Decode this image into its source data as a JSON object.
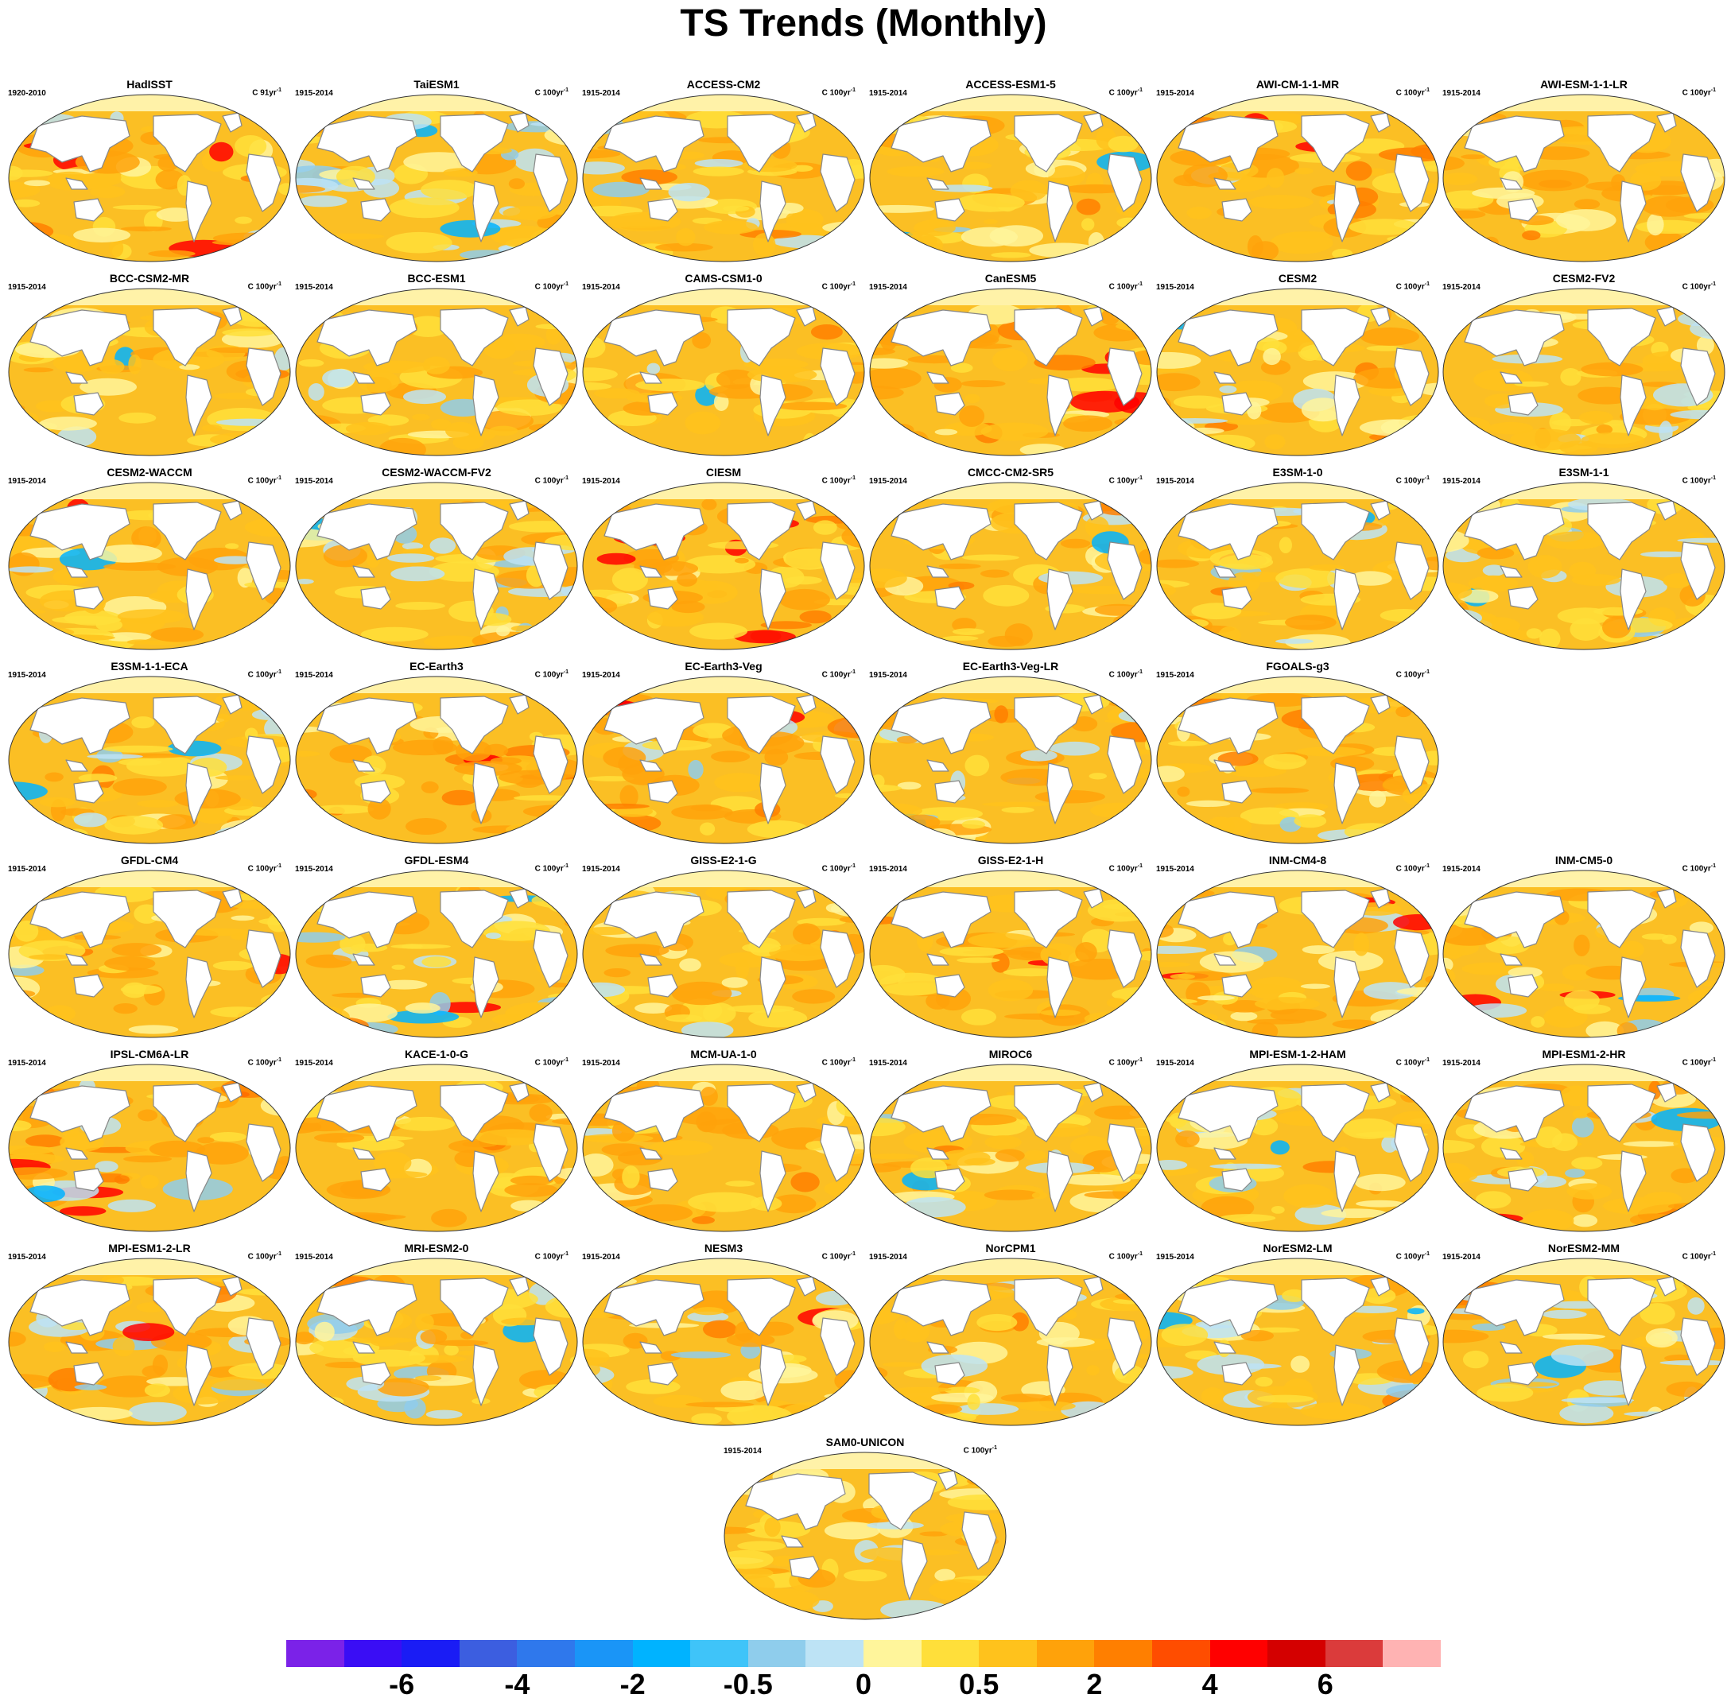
{
  "title": "TS Trends (Monthly)",
  "units_prefix": "C ",
  "units_suffix": "yr",
  "units_exp": "-1",
  "colors": {
    "ocean_base": "#fbbf24",
    "land": "#ffffff",
    "coast": "#888888",
    "arctic": "#fff2a8"
  },
  "colorbar": {
    "colors": [
      "#7b22e8",
      "#3a0df5",
      "#1a1cf5",
      "#3c5ee0",
      "#2f78ec",
      "#1a95f7",
      "#00b3ff",
      "#3fc4f9",
      "#8fcdec",
      "#bde3f5",
      "#fff59b",
      "#ffdf3a",
      "#ffc21c",
      "#ffa20a",
      "#ff7f00",
      "#ff4d00",
      "#ff0000",
      "#d40000",
      "#db3b3b",
      "#ffb3b3"
    ],
    "labels": [
      "-6",
      "-4",
      "-2",
      "-0.5",
      "0",
      "0.5",
      "2",
      "4",
      "6"
    ],
    "label_after_box": [
      2,
      4,
      6,
      8,
      10,
      12,
      14,
      16,
      18
    ]
  },
  "panels": [
    {
      "name": "HadISST",
      "period": "1920-2010",
      "units": "91",
      "cold": 0.05,
      "hot": 0.15,
      "seed": 1
    },
    {
      "name": "TaiESM1",
      "period": "1915-2014",
      "units": "100",
      "cold": 0.35,
      "hot": 0.02,
      "seed": 2
    },
    {
      "name": "ACCESS-CM2",
      "period": "1915-2014",
      "units": "100",
      "cold": 0.1,
      "hot": 0.1,
      "seed": 3
    },
    {
      "name": "ACCESS-ESM1-5",
      "period": "1915-2014",
      "units": "100",
      "cold": 0.15,
      "hot": 0.08,
      "seed": 4
    },
    {
      "name": "AWI-CM-1-1-MR",
      "period": "1915-2014",
      "units": "100",
      "cold": 0.03,
      "hot": 0.25,
      "seed": 5
    },
    {
      "name": "AWI-ESM-1-1-LR",
      "period": "1915-2014",
      "units": "100",
      "cold": 0.02,
      "hot": 0.3,
      "seed": 6
    },
    {
      "name": "BCC-CSM2-MR",
      "period": "1915-2014",
      "units": "100",
      "cold": 0.08,
      "hot": 0.18,
      "seed": 7
    },
    {
      "name": "BCC-ESM1",
      "period": "1915-2014",
      "units": "100",
      "cold": 0.2,
      "hot": 0.04,
      "seed": 8
    },
    {
      "name": "CAMS-CSM1-0",
      "period": "1915-2014",
      "units": "100",
      "cold": 0.1,
      "hot": 0.05,
      "seed": 9
    },
    {
      "name": "CanESM5",
      "period": "1915-2014",
      "units": "100",
      "cold": 0.03,
      "hot": 0.4,
      "seed": 10
    },
    {
      "name": "CESM2",
      "period": "1915-2014",
      "units": "100",
      "cold": 0.12,
      "hot": 0.12,
      "seed": 11
    },
    {
      "name": "CESM2-FV2",
      "period": "1915-2014",
      "units": "100",
      "cold": 0.15,
      "hot": 0.05,
      "seed": 12
    },
    {
      "name": "CESM2-WACCM",
      "period": "1915-2014",
      "units": "100",
      "cold": 0.05,
      "hot": 0.12,
      "seed": 13
    },
    {
      "name": "CESM2-WACCM-FV2",
      "period": "1915-2014",
      "units": "100",
      "cold": 0.3,
      "hot": 0.03,
      "seed": 14
    },
    {
      "name": "CIESM",
      "period": "1915-2014",
      "units": "100",
      "cold": 0.02,
      "hot": 0.5,
      "seed": 15
    },
    {
      "name": "CMCC-CM2-SR5",
      "period": "1915-2014",
      "units": "100",
      "cold": 0.05,
      "hot": 0.25,
      "seed": 16
    },
    {
      "name": "E3SM-1-0",
      "period": "1915-2014",
      "units": "100",
      "cold": 0.18,
      "hot": 0.1,
      "seed": 17
    },
    {
      "name": "E3SM-1-1",
      "period": "1915-2014",
      "units": "100",
      "cold": 0.3,
      "hot": 0.08,
      "seed": 18
    },
    {
      "name": "E3SM-1-1-ECA",
      "period": "1915-2014",
      "units": "100",
      "cold": 0.2,
      "hot": 0.08,
      "seed": 19
    },
    {
      "name": "EC-Earth3",
      "period": "1915-2014",
      "units": "100",
      "cold": 0.03,
      "hot": 0.35,
      "seed": 20
    },
    {
      "name": "EC-Earth3-Veg",
      "period": "1915-2014",
      "units": "100",
      "cold": 0.08,
      "hot": 0.35,
      "seed": 21
    },
    {
      "name": "EC-Earth3-Veg-LR",
      "period": "1915-2014",
      "units": "100",
      "cold": 0.25,
      "hot": 0.18,
      "seed": 22
    },
    {
      "name": "FGOALS-g3",
      "period": "1915-2014",
      "units": "100",
      "cold": 0.08,
      "hot": 0.18,
      "seed": 23
    },
    {
      "name": "GFDL-CM4",
      "period": "1915-2014",
      "units": "100",
      "cold": 0.03,
      "hot": 0.22,
      "seed": 24
    },
    {
      "name": "GFDL-ESM4",
      "period": "1915-2014",
      "units": "100",
      "cold": 0.25,
      "hot": 0.08,
      "seed": 25
    },
    {
      "name": "GISS-E2-1-G",
      "period": "1915-2014",
      "units": "100",
      "cold": 0.08,
      "hot": 0.1,
      "seed": 26
    },
    {
      "name": "GISS-E2-1-H",
      "period": "1915-2014",
      "units": "100",
      "cold": 0.03,
      "hot": 0.3,
      "seed": 27
    },
    {
      "name": "INM-CM4-8",
      "period": "1915-2014",
      "units": "100",
      "cold": 0.12,
      "hot": 0.3,
      "seed": 28
    },
    {
      "name": "INM-CM5-0",
      "period": "1915-2014",
      "units": "100",
      "cold": 0.2,
      "hot": 0.12,
      "seed": 29
    },
    {
      "name": "IPSL-CM6A-LR",
      "period": "1915-2014",
      "units": "100",
      "cold": 0.2,
      "hot": 0.35,
      "seed": 30
    },
    {
      "name": "KACE-1-0-G",
      "period": "1915-2014",
      "units": "100",
      "cold": 0.03,
      "hot": 0.3,
      "seed": 31
    },
    {
      "name": "MCM-UA-1-0",
      "period": "1915-2014",
      "units": "100",
      "cold": 0.06,
      "hot": 0.4,
      "seed": 32
    },
    {
      "name": "MIROC6",
      "period": "1915-2014",
      "units": "100",
      "cold": 0.2,
      "hot": 0.08,
      "seed": 33
    },
    {
      "name": "MPI-ESM-1-2-HAM",
      "period": "1915-2014",
      "units": "100",
      "cold": 0.3,
      "hot": 0.04,
      "seed": 34
    },
    {
      "name": "MPI-ESM1-2-HR",
      "period": "1915-2014",
      "units": "100",
      "cold": 0.12,
      "hot": 0.15,
      "seed": 35
    },
    {
      "name": "MPI-ESM1-2-LR",
      "period": "1915-2014",
      "units": "100",
      "cold": 0.15,
      "hot": 0.15,
      "seed": 36
    },
    {
      "name": "MRI-ESM2-0",
      "period": "1915-2014",
      "units": "100",
      "cold": 0.1,
      "hot": 0.1,
      "seed": 37
    },
    {
      "name": "NESM3",
      "period": "1915-2014",
      "units": "100",
      "cold": 0.1,
      "hot": 0.1,
      "seed": 38
    },
    {
      "name": "NorCPM1",
      "period": "1915-2014",
      "units": "100",
      "cold": 0.12,
      "hot": 0.1,
      "seed": 39
    },
    {
      "name": "NorESM2-LM",
      "period": "1915-2014",
      "units": "100",
      "cold": 0.3,
      "hot": 0.05,
      "seed": 40
    },
    {
      "name": "NorESM2-MM",
      "period": "1915-2014",
      "units": "100",
      "cold": 0.3,
      "hot": 0.12,
      "seed": 41
    },
    {
      "name": "SAM0-UNICON",
      "period": "1915-2014",
      "units": "100",
      "cold": 0.15,
      "hot": 0.05,
      "seed": 42
    }
  ]
}
